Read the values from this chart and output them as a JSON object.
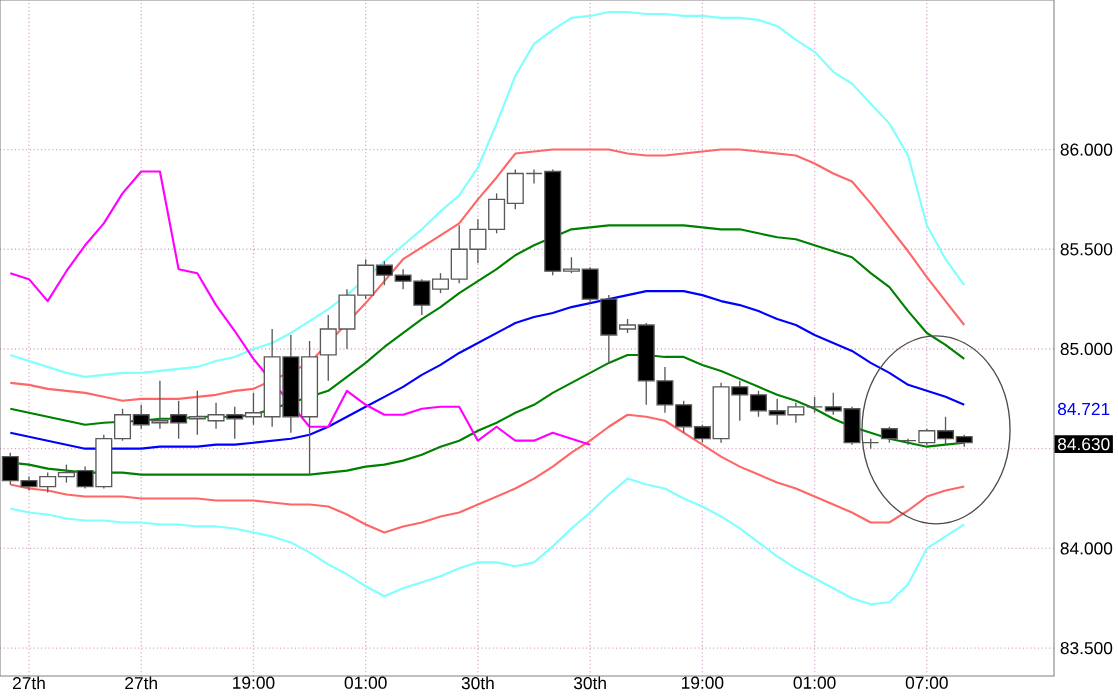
{
  "chart_data": {
    "type": "candlestick",
    "categories": [
      null,
      "27th",
      null,
      null,
      null,
      null,
      null,
      "27th",
      null,
      null,
      null,
      null,
      null,
      "19:00",
      null,
      null,
      null,
      null,
      null,
      "01:00",
      null,
      null,
      null,
      null,
      null,
      "30th",
      null,
      null,
      null,
      null,
      null,
      "30th",
      null,
      null,
      null,
      null,
      null,
      "19:00",
      null,
      null,
      null,
      null,
      null,
      "01:00",
      null,
      null,
      null,
      null,
      null,
      "07:00",
      null,
      null
    ],
    "ohlc": [
      [
        84.46,
        84.48,
        84.32,
        84.34
      ],
      [
        84.34,
        84.36,
        84.29,
        84.31
      ],
      [
        84.31,
        84.38,
        84.28,
        84.36
      ],
      [
        84.36,
        84.42,
        84.33,
        84.38
      ],
      [
        84.39,
        84.41,
        84.3,
        84.31
      ],
      [
        84.31,
        84.57,
        84.3,
        84.55
      ],
      [
        84.55,
        84.7,
        84.54,
        84.67
      ],
      [
        84.67,
        84.72,
        84.6,
        84.62
      ],
      [
        84.63,
        84.84,
        84.6,
        84.64
      ],
      [
        84.67,
        84.74,
        84.55,
        84.63
      ],
      [
        84.65,
        84.79,
        84.57,
        84.66
      ],
      [
        84.64,
        84.73,
        84.6,
        84.67
      ],
      [
        84.67,
        84.71,
        84.55,
        84.65
      ],
      [
        84.66,
        84.78,
        84.62,
        84.68
      ],
      [
        84.66,
        85.1,
        84.61,
        84.96
      ],
      [
        84.96,
        85.07,
        84.58,
        84.66
      ],
      [
        84.66,
        85.04,
        84.37,
        84.96
      ],
      [
        84.97,
        85.17,
        84.84,
        85.1
      ],
      [
        85.1,
        85.3,
        85.0,
        85.27
      ],
      [
        85.27,
        85.45,
        85.25,
        85.42
      ],
      [
        85.42,
        85.44,
        85.32,
        85.37
      ],
      [
        85.37,
        85.4,
        85.3,
        85.34
      ],
      [
        85.34,
        85.35,
        85.17,
        85.22
      ],
      [
        85.3,
        85.38,
        85.28,
        85.35
      ],
      [
        85.35,
        85.62,
        85.33,
        85.5
      ],
      [
        85.5,
        85.65,
        85.43,
        85.6
      ],
      [
        85.6,
        85.78,
        85.58,
        85.75
      ],
      [
        85.73,
        85.9,
        85.7,
        85.88
      ],
      [
        85.88,
        85.9,
        85.83,
        85.88
      ],
      [
        85.89,
        85.9,
        85.37,
        85.39
      ],
      [
        85.39,
        85.46,
        85.38,
        85.4
      ],
      [
        85.4,
        85.41,
        85.23,
        85.25
      ],
      [
        85.25,
        85.27,
        84.93,
        85.07
      ],
      [
        85.1,
        85.15,
        85.08,
        85.12
      ],
      [
        85.12,
        85.13,
        84.72,
        84.84
      ],
      [
        84.84,
        84.91,
        84.68,
        84.72
      ],
      [
        84.72,
        84.74,
        84.58,
        84.61
      ],
      [
        84.61,
        84.62,
        84.53,
        84.55
      ],
      [
        84.55,
        84.83,
        84.53,
        84.81
      ],
      [
        84.81,
        84.84,
        84.64,
        84.77
      ],
      [
        84.77,
        84.79,
        84.66,
        84.69
      ],
      [
        84.69,
        84.75,
        84.62,
        84.67
      ],
      [
        84.67,
        84.73,
        84.63,
        84.71
      ],
      [
        84.71,
        84.76,
        84.68,
        84.71
      ],
      [
        84.71,
        84.78,
        84.67,
        84.69
      ],
      [
        84.7,
        84.71,
        84.52,
        84.53
      ],
      [
        84.53,
        84.55,
        84.5,
        84.53
      ],
      [
        84.6,
        84.61,
        84.53,
        84.55
      ],
      [
        84.54,
        84.55,
        84.52,
        84.54
      ],
      [
        84.53,
        84.6,
        84.52,
        84.59
      ],
      [
        84.59,
        84.66,
        84.52,
        84.55
      ],
      [
        84.56,
        84.57,
        84.51,
        84.53
      ]
    ],
    "series": [
      {
        "type": "line",
        "color": "#80ffff",
        "values": [
          84.97,
          84.94,
          84.91,
          84.88,
          84.86,
          84.87,
          84.88,
          84.88,
          84.89,
          84.9,
          84.91,
          84.94,
          84.96,
          85.0,
          85.03,
          85.08,
          85.14,
          85.2,
          85.27,
          null,
          85.44,
          85.52,
          85.6,
          85.69,
          85.77,
          85.91,
          86.13,
          86.37,
          86.53,
          86.6,
          86.66,
          86.67,
          86.69,
          86.69,
          86.68,
          86.68,
          86.67,
          86.67,
          86.66,
          86.66,
          86.65,
          86.62,
          86.55,
          86.49,
          86.39,
          86.33,
          86.23,
          86.13,
          85.97,
          85.62,
          85.45,
          85.32
        ]
      },
      {
        "type": "line",
        "color": "#ff6666",
        "values": [
          84.83,
          84.82,
          84.8,
          84.79,
          84.78,
          84.76,
          84.74,
          84.75,
          84.75,
          84.75,
          84.76,
          84.77,
          84.79,
          84.8,
          null,
          null,
          84.93,
          null,
          85.13,
          85.23,
          85.34,
          85.45,
          85.51,
          85.57,
          85.63,
          85.75,
          85.86,
          85.98,
          85.99,
          86.0,
          86.0,
          86.0,
          86.0,
          85.98,
          85.97,
          85.97,
          85.98,
          85.99,
          86.0,
          86.0,
          85.99,
          85.98,
          85.97,
          85.93,
          85.88,
          85.84,
          85.73,
          85.61,
          85.49,
          85.36,
          85.24,
          85.12
        ]
      },
      {
        "type": "line",
        "color": "#008000",
        "values": [
          84.7,
          84.68,
          84.66,
          84.64,
          84.62,
          84.63,
          null,
          84.64,
          84.65,
          84.65,
          84.66,
          84.66,
          84.66,
          84.67,
          null,
          null,
          null,
          84.79,
          84.86,
          84.93,
          85.01,
          85.08,
          85.15,
          85.21,
          85.28,
          85.34,
          85.4,
          85.47,
          85.52,
          null,
          85.6,
          85.61,
          85.62,
          85.62,
          85.62,
          85.62,
          85.62,
          85.61,
          85.6,
          85.6,
          85.58,
          85.56,
          85.55,
          85.52,
          85.49,
          85.46,
          85.38,
          85.31,
          85.19,
          85.08,
          85.02,
          84.95
        ]
      },
      {
        "type": "line",
        "color": "#0000ff",
        "values": [
          84.58,
          84.56,
          84.54,
          84.52,
          84.5,
          null,
          84.5,
          84.5,
          84.51,
          84.51,
          84.51,
          84.52,
          84.52,
          84.53,
          84.54,
          84.55,
          84.57,
          84.61,
          84.66,
          84.71,
          84.76,
          84.81,
          84.87,
          84.92,
          84.98,
          85.03,
          85.08,
          85.13,
          85.16,
          85.18,
          85.21,
          85.23,
          85.25,
          85.27,
          85.29,
          85.29,
          85.29,
          85.27,
          85.24,
          85.22,
          85.19,
          85.15,
          85.12,
          85.07,
          85.03,
          84.99,
          84.93,
          84.88,
          84.82,
          84.79,
          84.76,
          84.72
        ]
      },
      {
        "type": "line",
        "color": "#008000",
        "values": [
          84.43,
          84.42,
          84.4,
          84.39,
          84.38,
          null,
          84.38,
          84.37,
          84.37,
          84.37,
          84.37,
          84.37,
          84.37,
          84.37,
          84.37,
          84.37,
          84.37,
          84.38,
          84.39,
          84.41,
          84.42,
          84.44,
          84.47,
          84.51,
          84.54,
          84.59,
          84.63,
          84.68,
          84.72,
          84.78,
          84.83,
          84.88,
          84.93,
          84.97,
          84.97,
          84.96,
          84.96,
          84.92,
          84.89,
          84.85,
          84.81,
          84.77,
          84.74,
          84.7,
          84.65,
          84.61,
          84.58,
          84.55,
          84.53,
          84.51,
          84.52,
          84.53
        ]
      },
      {
        "type": "line",
        "color": "#ff6666",
        "values": [
          84.32,
          84.3,
          84.29,
          84.27,
          84.26,
          84.26,
          84.26,
          84.25,
          84.25,
          84.25,
          84.25,
          84.24,
          84.24,
          84.24,
          84.23,
          84.22,
          84.22,
          84.21,
          84.17,
          84.12,
          84.08,
          84.11,
          84.13,
          84.16,
          84.18,
          84.22,
          84.26,
          84.3,
          84.35,
          84.41,
          84.48,
          84.54,
          84.61,
          84.67,
          84.66,
          84.64,
          84.58,
          84.52,
          84.46,
          84.41,
          84.37,
          84.33,
          84.3,
          84.26,
          84.22,
          84.18,
          84.13,
          84.13,
          84.19,
          84.26,
          84.29,
          84.31
        ]
      },
      {
        "type": "line",
        "color": "#80ffff",
        "values": [
          84.2,
          84.18,
          84.17,
          84.15,
          84.14,
          84.14,
          84.13,
          84.13,
          84.12,
          84.12,
          84.11,
          84.11,
          84.1,
          84.08,
          84.06,
          84.03,
          83.98,
          83.92,
          83.87,
          83.81,
          83.76,
          83.8,
          83.83,
          83.86,
          83.9,
          83.93,
          83.93,
          83.91,
          83.93,
          84.01,
          84.1,
          84.18,
          84.27,
          84.35,
          84.32,
          84.3,
          84.25,
          84.21,
          84.16,
          84.1,
          84.03,
          83.96,
          83.9,
          83.85,
          83.8,
          83.75,
          83.72,
          83.73,
          83.82,
          84.0,
          84.06,
          84.12
        ]
      },
      {
        "type": "line",
        "color": "#ff00ff",
        "values": [
          85.38,
          85.35,
          85.24,
          85.39,
          85.52,
          85.63,
          85.78,
          85.89,
          85.89,
          85.4,
          85.38,
          85.22,
          85.09,
          84.95,
          null,
          null,
          84.61,
          84.61,
          84.79,
          84.72,
          84.67,
          84.67,
          84.7,
          84.71,
          84.71,
          84.54,
          84.61,
          84.54,
          84.54,
          84.58,
          84.55,
          84.52,
          null,
          null,
          null,
          null,
          null,
          null,
          null,
          null,
          null,
          null,
          null,
          null,
          null,
          null,
          null,
          null,
          null,
          null,
          null,
          null
        ]
      }
    ],
    "ylim": [
      83.36,
      86.75
    ],
    "yticks": [
      {
        "value": 83.5,
        "label": "83.500"
      },
      {
        "value": 84.0,
        "label": "84.000"
      },
      {
        "value": 84.5,
        "label": null
      },
      {
        "value": 85.0,
        "label": "85.000"
      },
      {
        "value": 85.5,
        "label": "85.500"
      },
      {
        "value": 86.0,
        "label": "86.000"
      }
    ],
    "grid": true,
    "annotations": [
      "84.721",
      "84.630"
    ]
  }
}
